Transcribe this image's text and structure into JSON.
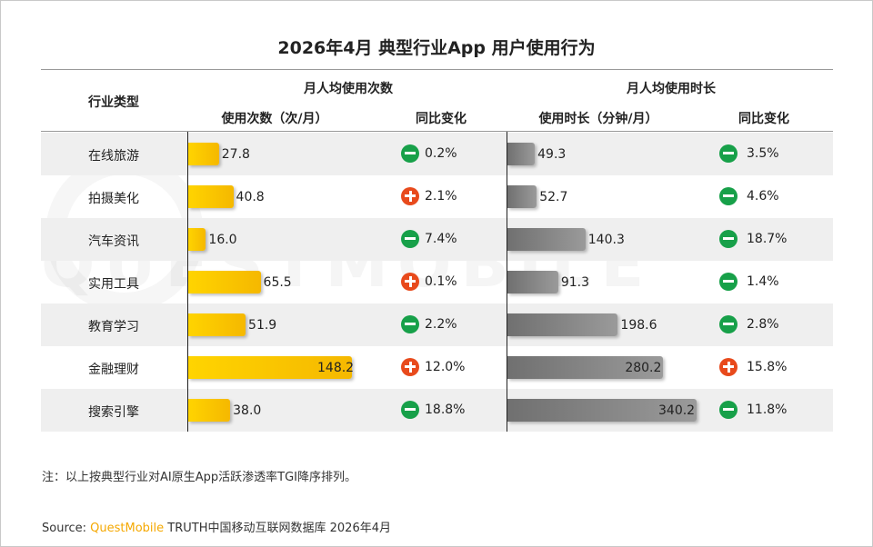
{
  "chart_data": {
    "type": "table",
    "title": "2026年4月 典型行业App 用户使用行为",
    "columns": {
      "category": "行业类型",
      "group1": "月人均使用次数",
      "group1_value": "使用次数（次/月）",
      "group1_change": "同比变化",
      "group2": "月人均使用时长",
      "group2_value": "使用时长（分钟/月）",
      "group2_change": "同比变化"
    },
    "rows": [
      {
        "category": "在线旅游",
        "uses": 27.8,
        "uses_label": "27.8",
        "uses_dir": "down",
        "uses_change": "0.2%",
        "duration": 49.3,
        "duration_label": "49.3",
        "duration_dir": "down",
        "duration_change": "3.5%"
      },
      {
        "category": "拍摄美化",
        "uses": 40.8,
        "uses_label": "40.8",
        "uses_dir": "up",
        "uses_change": "2.1%",
        "duration": 52.7,
        "duration_label": "52.7",
        "duration_dir": "down",
        "duration_change": "4.6%"
      },
      {
        "category": "汽车资讯",
        "uses": 16.0,
        "uses_label": "16.0",
        "uses_dir": "down",
        "uses_change": "7.4%",
        "duration": 140.3,
        "duration_label": "140.3",
        "duration_dir": "down",
        "duration_change": "18.7%"
      },
      {
        "category": "实用工具",
        "uses": 65.5,
        "uses_label": "65.5",
        "uses_dir": "up",
        "uses_change": "0.1%",
        "duration": 91.3,
        "duration_label": "91.3",
        "duration_dir": "down",
        "duration_change": "1.4%"
      },
      {
        "category": "教育学习",
        "uses": 51.9,
        "uses_label": "51.9",
        "uses_dir": "down",
        "uses_change": "2.2%",
        "duration": 198.6,
        "duration_label": "198.6",
        "duration_dir": "down",
        "duration_change": "2.8%"
      },
      {
        "category": "金融理财",
        "uses": 148.2,
        "uses_label": "148.2",
        "uses_dir": "up",
        "uses_change": "12.0%",
        "duration": 280.2,
        "duration_label": "280.2",
        "duration_dir": "up",
        "duration_change": "15.8%"
      },
      {
        "category": "搜索引擎",
        "uses": 38.0,
        "uses_label": "38.0",
        "uses_dir": "down",
        "uses_change": "18.8%",
        "duration": 340.2,
        "duration_label": "340.2",
        "duration_dir": "down",
        "duration_change": "11.8%"
      }
    ]
  },
  "colors": {
    "uses_bar": "#ffc800",
    "duration_bar": "#7a7a7a",
    "down": "#17a049",
    "up": "#e84a1c"
  },
  "watermark": "QUESTMOBILE",
  "note": "注：以上按典型行业对AI原生App活跃渗透率TGI降序排列。",
  "source": {
    "prefix": "Source:  ",
    "brand": "QuestMobile",
    "rest": " TRUTH中国移动互联网数据库 2026年4月"
  }
}
